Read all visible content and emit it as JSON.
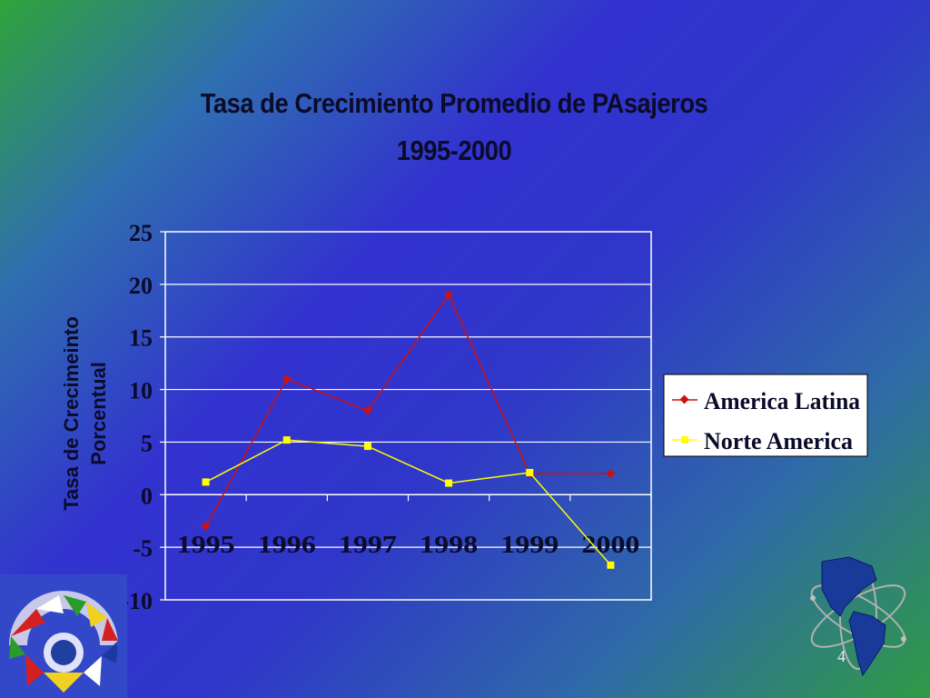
{
  "slide_number": "4",
  "chart_data": {
    "type": "line",
    "title": "Tasa de Crecimiento Promedio de PAsajeros",
    "subtitle": "1995-2000",
    "xlabel": "",
    "ylabel_lines": [
      "Tasa de Crecimeinto",
      "Porcentual"
    ],
    "categories": [
      "1995",
      "1996",
      "1997",
      "1998",
      "1999",
      "2000"
    ],
    "ylim": [
      -10,
      25
    ],
    "yticks": [
      25,
      20,
      15,
      10,
      5,
      0,
      -5,
      -10
    ],
    "grid": true,
    "legend": "right",
    "series": [
      {
        "name": "America Latina",
        "color": "#cc1111",
        "marker": "diamond",
        "values": [
          -3,
          11,
          8,
          19,
          2,
          2
        ]
      },
      {
        "name": "Norte America",
        "color": "#ffff00",
        "marker": "square",
        "values": [
          1.2,
          5.2,
          4.6,
          1.1,
          2.1,
          -6.7
        ]
      }
    ]
  }
}
